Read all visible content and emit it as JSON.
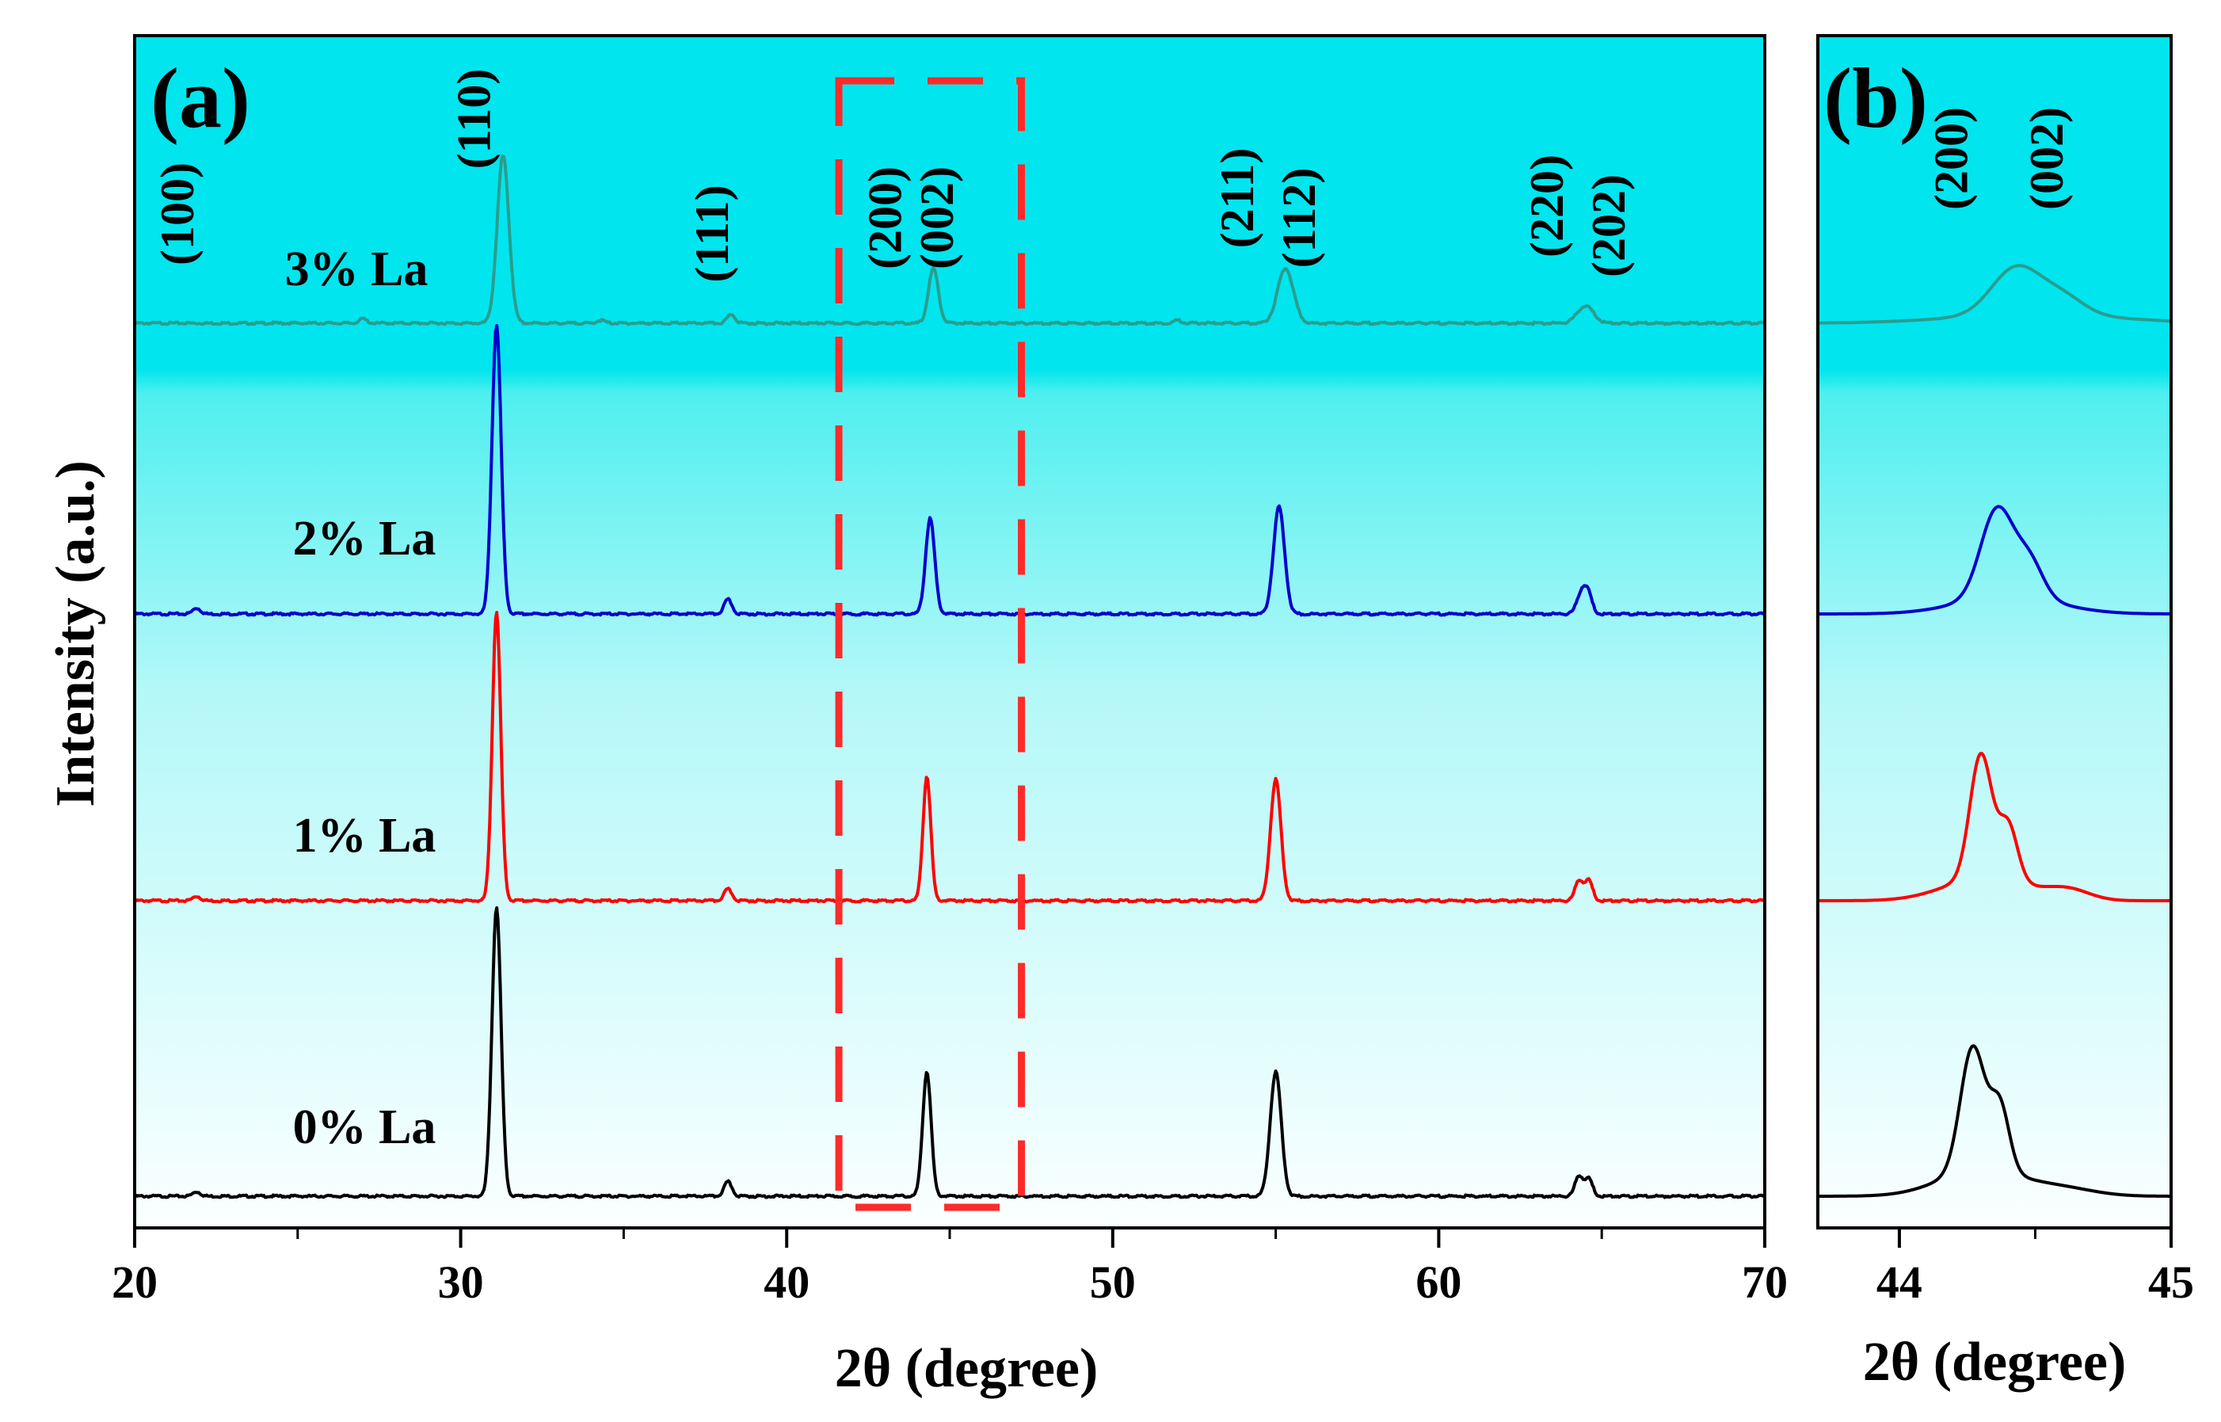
{
  "chart_data": [
    {
      "panel": "(a)",
      "type": "line",
      "xlabel": "2θ (degree)",
      "ylabel": "Intensity (a.u.)",
      "xlim": [
        20,
        70
      ],
      "xticks": [
        "20",
        "30",
        "40",
        "50",
        "60",
        "70"
      ],
      "highlight_box": {
        "x_range": [
          41.6,
          47.2
        ],
        "style": "red dashed"
      },
      "annotations": [
        {
          "text": "(100)",
          "x": 21.8
        },
        {
          "text": "(110)",
          "x": 30.9
        },
        {
          "text": "(111)",
          "x": 38.2
        },
        {
          "text": "(200)",
          "x": 43.5
        },
        {
          "text": "(002)",
          "x": 45.1
        },
        {
          "text": "(211)",
          "x": 54.3
        },
        {
          "text": "(112)",
          "x": 56.2
        },
        {
          "text": "(220)",
          "x": 63.8
        },
        {
          "text": "(202)",
          "x": 65.7
        }
      ],
      "series": [
        {
          "name": "0% La",
          "color": "#000000",
          "baseline": 0.0,
          "peaks": [
            [
              21.9,
              0.015,
              0.12
            ],
            [
              31.1,
              1.0,
              0.14
            ],
            [
              38.2,
              0.05,
              0.12
            ],
            [
              44.3,
              0.43,
              0.13
            ],
            [
              55.0,
              0.43,
              0.17
            ],
            [
              64.3,
              0.07,
              0.12
            ],
            [
              64.6,
              0.06,
              0.12
            ]
          ]
        },
        {
          "name": "1% La",
          "color": "#ff0000",
          "baseline": 1.0,
          "peaks": [
            [
              21.9,
              0.015,
              0.12
            ],
            [
              31.1,
              1.0,
              0.13
            ],
            [
              38.2,
              0.04,
              0.12
            ],
            [
              44.3,
              0.43,
              0.12
            ],
            [
              55.0,
              0.42,
              0.16
            ],
            [
              64.3,
              0.07,
              0.12
            ],
            [
              64.6,
              0.07,
              0.12
            ]
          ]
        },
        {
          "name": "2% La",
          "color": "#0000cc",
          "baseline": 2.0,
          "peaks": [
            [
              21.9,
              0.02,
              0.12
            ],
            [
              31.1,
              1.0,
              0.14
            ],
            [
              38.2,
              0.05,
              0.12
            ],
            [
              44.4,
              0.33,
              0.14
            ],
            [
              55.1,
              0.37,
              0.17
            ],
            [
              64.4,
              0.08,
              0.15
            ],
            [
              64.6,
              0.05,
              0.12
            ]
          ]
        },
        {
          "name": "3% La",
          "color": "#2a9d8f",
          "baseline": 3.0,
          "peaks": [
            [
              27.0,
              0.015,
              0.12
            ],
            [
              31.3,
              0.58,
              0.18
            ],
            [
              34.3,
              0.01,
              0.12
            ],
            [
              38.3,
              0.03,
              0.12
            ],
            [
              44.5,
              0.19,
              0.15
            ],
            [
              52.0,
              0.01,
              0.12
            ],
            [
              55.3,
              0.19,
              0.24
            ],
            [
              64.5,
              0.06,
              0.25
            ]
          ]
        }
      ]
    },
    {
      "panel": "(b)",
      "type": "line",
      "xlabel": "2θ (degree)",
      "xlim": [
        43.7,
        45.0
      ],
      "xticks": [
        "44",
        "45"
      ],
      "annotations": [
        {
          "text": "(200)",
          "x": 44.25
        },
        {
          "text": "(002)",
          "x": 44.6
        }
      ],
      "series": [
        {
          "name": "0% La",
          "color": "#000000",
          "baseline": 0.0,
          "peaks": [
            [
              44.27,
              0.42,
              0.045
            ],
            [
              44.37,
              0.22,
              0.035
            ],
            [
              44.3,
              0.09,
              0.15
            ],
            [
              44.6,
              0.025,
              0.12
            ]
          ]
        },
        {
          "name": "1% La",
          "color": "#ff0000",
          "baseline": 1.0,
          "peaks": [
            [
              44.3,
              0.42,
              0.04
            ],
            [
              44.4,
              0.19,
              0.035
            ],
            [
              44.32,
              0.08,
              0.15
            ],
            [
              44.62,
              0.035,
              0.08
            ]
          ]
        },
        {
          "name": "2% La",
          "color": "#0000cc",
          "baseline": 2.0,
          "peaks": [
            [
              44.36,
              0.3,
              0.06
            ],
            [
              44.48,
              0.12,
              0.05
            ],
            [
              44.4,
              0.06,
              0.18
            ]
          ]
        },
        {
          "name": "3% La",
          "color": "#2a9d8f",
          "baseline": 3.0,
          "peaks": [
            [
              44.43,
              0.16,
              0.09
            ],
            [
              44.6,
              0.06,
              0.08
            ],
            [
              44.5,
              0.03,
              0.3
            ]
          ]
        }
      ]
    }
  ]
}
